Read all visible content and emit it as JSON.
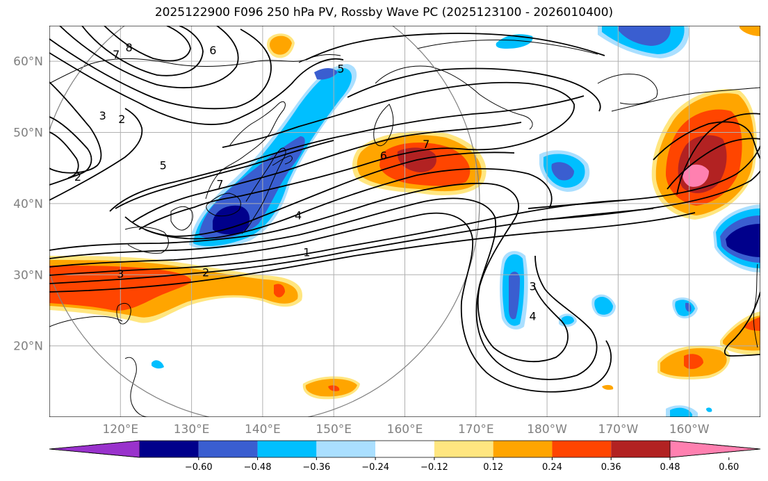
{
  "title": "2025122900 F096 250 hPa PV, Rossby Wave PC (2025123100 - 2026010400)",
  "lon_ticks": [
    {
      "lon": 120,
      "label": "120°E"
    },
    {
      "lon": 130,
      "label": "130°E"
    },
    {
      "lon": 140,
      "label": "140°E"
    },
    {
      "lon": 150,
      "label": "150°E"
    },
    {
      "lon": 160,
      "label": "160°E"
    },
    {
      "lon": 170,
      "label": "170°E"
    },
    {
      "lon": 180,
      "label": "180°W"
    },
    {
      "lon": 190,
      "label": "170°W"
    },
    {
      "lon": 200,
      "label": "160°W"
    }
  ],
  "lat_ticks": [
    {
      "lat": 60,
      "label": "60°N"
    },
    {
      "lat": 50,
      "label": "50°N"
    },
    {
      "lat": 40,
      "label": "40°N"
    },
    {
      "lat": 30,
      "label": "30°N"
    },
    {
      "lat": 20,
      "label": "20°N"
    }
  ],
  "colorbar": {
    "labels": [
      "−0.60",
      "−0.48",
      "−0.36",
      "−0.24",
      "−0.12",
      "0.12",
      "0.24",
      "0.36",
      "0.48",
      "0.60"
    ],
    "colors": [
      "#9932cc",
      "#00008b",
      "#3a5ed0",
      "#00bfff",
      "#aadfff",
      "#ffffff",
      "#ffe680",
      "#ffa500",
      "#ff4500",
      "#b22222",
      "#ff80b0"
    ]
  },
  "contour_labels": [
    {
      "text": "8",
      "lon": 121.2,
      "lat": 61.6
    },
    {
      "text": "7",
      "lon": 119.4,
      "lat": 60.6
    },
    {
      "text": "6",
      "lon": 133.0,
      "lat": 61.2
    },
    {
      "text": "3",
      "lon": 117.5,
      "lat": 52.0
    },
    {
      "text": "2",
      "lon": 120.2,
      "lat": 51.5
    },
    {
      "text": "5",
      "lon": 126.0,
      "lat": 45.0
    },
    {
      "text": "2",
      "lon": 114.0,
      "lat": 43.4
    },
    {
      "text": "5",
      "lon": 151.0,
      "lat": 58.6
    },
    {
      "text": "7",
      "lon": 163.0,
      "lat": 48.0
    },
    {
      "text": "6",
      "lon": 157.0,
      "lat": 46.4
    },
    {
      "text": "7",
      "lon": 134.0,
      "lat": 42.4
    },
    {
      "text": "4",
      "lon": 145.0,
      "lat": 38.0
    },
    {
      "text": "1",
      "lon": 146.2,
      "lat": 32.8
    },
    {
      "text": "3",
      "lon": 120.0,
      "lat": 29.8
    },
    {
      "text": "2",
      "lon": 132.0,
      "lat": 30.0
    },
    {
      "text": "3",
      "lon": 178.0,
      "lat": 28.0
    },
    {
      "text": "4",
      "lon": 178.0,
      "lat": 23.8
    }
  ],
  "colors": {
    "gridline": "#b0b0b0",
    "circle": "#808080",
    "contour": "#000000"
  }
}
